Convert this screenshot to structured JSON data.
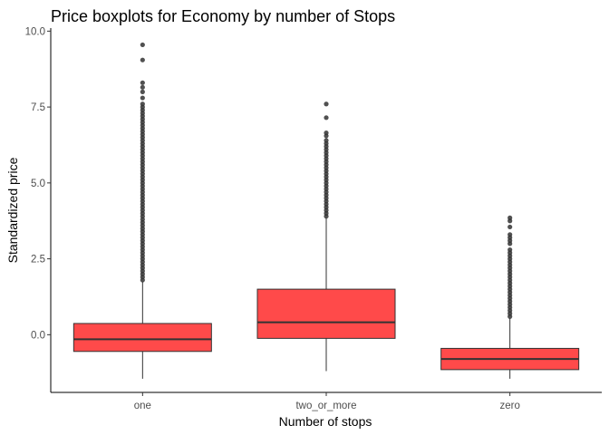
{
  "chart_data": {
    "type": "boxplot",
    "title": "Price boxplots for Economy by number of Stops",
    "xlabel": "Number of stops",
    "ylabel": "Standardized price",
    "categories": [
      "one",
      "two_or_more",
      "zero"
    ],
    "ylim": [
      -1.9,
      10.1
    ],
    "yticks": [
      0.0,
      2.5,
      5.0,
      7.5,
      10.0
    ],
    "ytick_labels": [
      "0.0",
      "2.5",
      "5.0",
      "7.5",
      "10.0"
    ],
    "grid": false,
    "legend": "none",
    "box_fill": "#ff4a4a",
    "box_stroke": "#333333",
    "outlier_color": "#333333",
    "boxes": [
      {
        "category": "one",
        "whisker_low": -1.45,
        "q1": -0.55,
        "median": -0.15,
        "q3": 0.37,
        "whisker_high": 1.75,
        "outliers": [
          1.8,
          1.9,
          2.0,
          2.1,
          2.2,
          2.3,
          2.4,
          2.5,
          2.6,
          2.7,
          2.8,
          2.9,
          3.0,
          3.1,
          3.2,
          3.3,
          3.4,
          3.5,
          3.6,
          3.7,
          3.8,
          3.9,
          4.0,
          4.1,
          4.2,
          4.3,
          4.4,
          4.5,
          4.6,
          4.7,
          4.8,
          4.9,
          5.0,
          5.1,
          5.2,
          5.3,
          5.4,
          5.5,
          5.6,
          5.7,
          5.8,
          5.9,
          6.0,
          6.1,
          6.2,
          6.3,
          6.4,
          6.5,
          6.6,
          6.7,
          6.8,
          6.9,
          7.0,
          7.1,
          7.2,
          7.3,
          7.4,
          7.5,
          7.6,
          7.8,
          8.0,
          8.15,
          8.3,
          9.05,
          9.55
        ]
      },
      {
        "category": "two_or_more",
        "whisker_low": -1.2,
        "q1": -0.12,
        "median": 0.41,
        "q3": 1.5,
        "whisker_high": 3.85,
        "outliers": [
          3.9,
          4.0,
          4.1,
          4.2,
          4.3,
          4.4,
          4.5,
          4.6,
          4.7,
          4.8,
          4.9,
          5.0,
          5.1,
          5.2,
          5.3,
          5.4,
          5.5,
          5.6,
          5.7,
          5.8,
          5.9,
          6.0,
          6.1,
          6.2,
          6.3,
          6.4,
          6.55,
          6.65,
          7.15,
          7.6
        ]
      },
      {
        "category": "zero",
        "whisker_low": -1.45,
        "q1": -1.15,
        "median": -0.8,
        "q3": -0.45,
        "whisker_high": 0.55,
        "outliers": [
          0.6,
          0.7,
          0.8,
          0.9,
          1.0,
          1.1,
          1.2,
          1.3,
          1.4,
          1.5,
          1.6,
          1.7,
          1.8,
          1.9,
          2.0,
          2.1,
          2.2,
          2.3,
          2.4,
          2.5,
          2.6,
          2.7,
          2.8,
          3.0,
          3.1,
          3.2,
          3.3,
          3.55,
          3.75,
          3.85
        ]
      }
    ]
  }
}
